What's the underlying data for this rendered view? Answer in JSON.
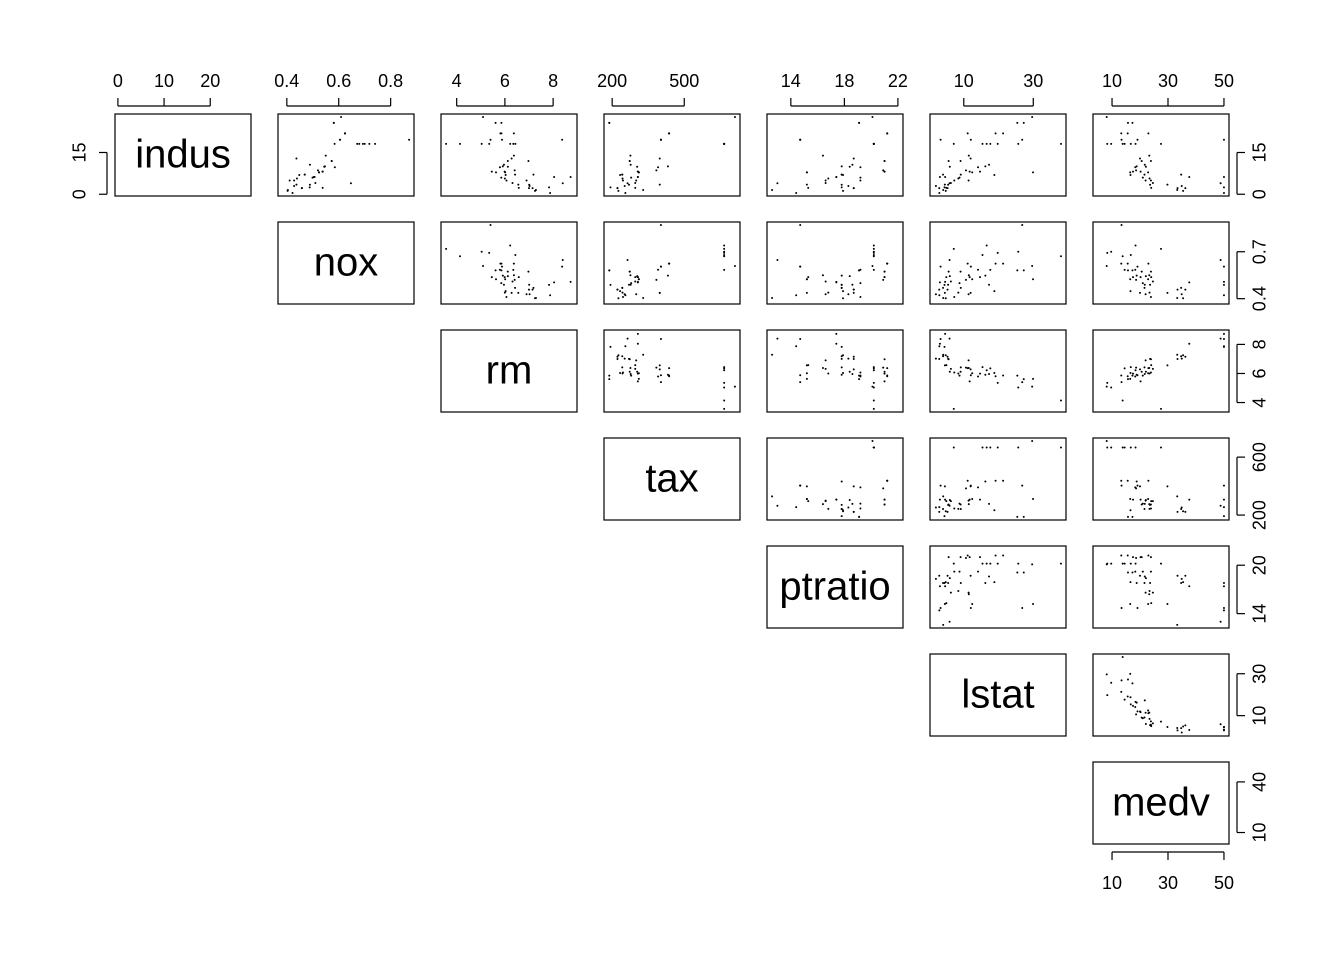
{
  "chart_data": {
    "type": "scatter-matrix",
    "point_color": "#000000",
    "variables": [
      {
        "name": "indus",
        "lim": [
          -0.63,
          28.83
        ],
        "xticks": [
          0,
          10,
          20
        ],
        "yticks": [
          0,
          15
        ],
        "values": [
          2.31,
          7.07,
          7.07,
          2.18,
          2.18,
          7.87,
          7.87,
          8.14,
          8.14,
          5.96,
          2.95,
          6.91,
          5.64,
          4.05,
          2.46,
          3.44,
          6.2,
          6.2,
          3.97,
          19.58,
          19.58,
          19.58,
          21.89,
          21.89,
          10.59,
          25.65,
          27.74,
          9.69,
          18.1,
          18.1,
          18.1,
          18.1,
          18.1,
          18.1,
          18.1,
          8.56,
          10.01,
          3.41,
          1.22,
          0.46,
          4.93,
          12.83,
          1.52,
          13.89,
          11.93,
          11.93,
          25.65,
          21.89,
          9.9,
          4.95
        ]
      },
      {
        "name": "nox",
        "lim": [
          0.366,
          0.89
        ],
        "xticks": [
          0.4,
          0.6,
          0.8
        ],
        "yticks": [
          0.4,
          0.7
        ],
        "values": [
          0.538,
          0.469,
          0.469,
          0.458,
          0.458,
          0.524,
          0.524,
          0.538,
          0.538,
          0.499,
          0.428,
          0.448,
          0.439,
          0.51,
          0.488,
          0.437,
          0.504,
          0.507,
          0.647,
          0.871,
          0.605,
          0.605,
          0.624,
          0.624,
          0.489,
          0.581,
          0.609,
          0.585,
          0.7,
          0.693,
          0.74,
          0.679,
          0.584,
          0.671,
          0.718,
          0.52,
          0.547,
          0.489,
          0.403,
          0.422,
          0.428,
          0.437,
          0.404,
          0.55,
          0.573,
          0.573,
          0.581,
          0.624,
          0.544,
          0.411
        ]
      },
      {
        "name": "rm",
        "lim": [
          3.35,
          8.99
        ],
        "xticks": [
          4,
          6,
          8
        ],
        "yticks": [
          4,
          6,
          8
        ],
        "values": [
          6.575,
          6.421,
          7.185,
          6.998,
          7.147,
          6.012,
          5.631,
          5.99,
          5.456,
          5.85,
          7.024,
          6.03,
          5.998,
          6.315,
          7.831,
          6.556,
          8.04,
          8.725,
          8.398,
          5.403,
          5.88,
          8.375,
          5.857,
          6.372,
          5.96,
          5.856,
          5.093,
          5.794,
          5.036,
          5.349,
          6.219,
          6.434,
          6.348,
          4.138,
          3.561,
          6.405,
          5.913,
          7.007,
          7.249,
          7.875,
          6.897,
          6.279,
          7.287,
          6.373,
          6.12,
          6.976,
          5.613,
          5.813,
          6.122,
          6.064
        ]
      },
      {
        "name": "tax",
        "lim": [
          166,
          732
        ],
        "xticks": [
          200,
          500
        ],
        "yticks": [
          200,
          600
        ],
        "values": [
          296,
          242,
          242,
          222,
          222,
          311,
          311,
          307,
          307,
          279,
          252,
          233,
          243,
          296,
          193,
          398,
          307,
          307,
          264,
          403,
          403,
          403,
          437,
          437,
          277,
          188,
          711,
          391,
          666,
          666,
          666,
          666,
          666,
          666,
          666,
          384,
          432,
          270,
          226,
          255,
          300,
          398,
          329,
          276,
          273,
          273,
          188,
          437,
          304,
          245
        ]
      },
      {
        "name": "ptratio",
        "lim": [
          12.22,
          22.38
        ],
        "xticks": [
          14,
          18,
          22
        ],
        "yticks": [
          14,
          20
        ],
        "values": [
          15.3,
          17.8,
          17.8,
          18.7,
          18.7,
          15.2,
          15.2,
          21,
          21,
          19.2,
          18.3,
          17.9,
          16.8,
          16.6,
          17.8,
          15.2,
          17.4,
          17.4,
          13,
          14.7,
          14.7,
          14.7,
          21.2,
          21.2,
          18.6,
          19.1,
          20.1,
          19.2,
          20.2,
          20.2,
          20.2,
          20.2,
          20.2,
          20.2,
          20.2,
          20.9,
          17.8,
          17.8,
          17.9,
          14.4,
          16.6,
          18.7,
          12.6,
          16.4,
          21,
          21,
          19.1,
          21.2,
          18.4,
          19.2
        ]
      },
      {
        "name": "lstat",
        "lim": [
          0.28,
          39.42
        ],
        "xticks": [
          10,
          30
        ],
        "yticks": [
          10,
          30
        ],
        "values": [
          4.98,
          9.14,
          4.03,
          2.94,
          5.33,
          12.43,
          29.93,
          14.67,
          11.69,
          8.77,
          1.98,
          18.8,
          8.43,
          6.29,
          4.45,
          4.56,
          3.13,
          4.63,
          5.91,
          26.82,
          12.03,
          3.32,
          21.32,
          11.12,
          17.27,
          25.41,
          29.68,
          14.1,
          25.68,
          19.77,
          16.59,
          15.39,
          17.64,
          37.97,
          7.12,
          10.63,
          16.21,
          5.5,
          4.81,
          2.97,
          11.38,
          11.97,
          4.08,
          11.45,
          9.08,
          5.64,
          27.26,
          19.15,
          5.98,
          7.27
        ]
      },
      {
        "name": "medv",
        "lim": [
          3.2,
          51.8
        ],
        "xticks": [
          10,
          30,
          50
        ],
        "yticks": [
          10,
          40
        ],
        "values": [
          24,
          21.6,
          34.7,
          33.4,
          36.2,
          22.9,
          16.5,
          17.5,
          20.2,
          21,
          34.9,
          16.6,
          23.4,
          24.6,
          50,
          29.8,
          37.6,
          50,
          48.8,
          13.4,
          19.1,
          50,
          13.3,
          23,
          21.7,
          17.3,
          8.1,
          18.3,
          9.7,
          8.3,
          18.4,
          16.7,
          14.5,
          13.8,
          27.5,
          18.6,
          18.8,
          23.6,
          35.4,
          50,
          22,
          20,
          33.3,
          23.3,
          20.6,
          23.9,
          15.7,
          15.6,
          22.1,
          23.9
        ]
      }
    ]
  }
}
